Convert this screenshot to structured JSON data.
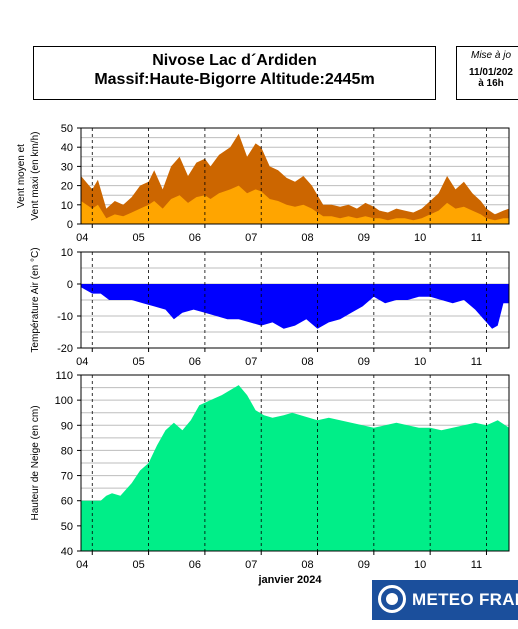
{
  "header": {
    "line1": "Nivose Lac d´Ardiden",
    "line2": "Massif:Haute-Bigorre Altitude:2445m"
  },
  "update": {
    "label": "Mise à jo",
    "date": "11/01/202",
    "time": "à 16h"
  },
  "logo": {
    "text": "METEO FRAN"
  },
  "colors": {
    "wind_max": "#cc6600",
    "wind_mean": "#ffa500",
    "temperature": "#0000ff",
    "snow": "#00ee88",
    "grid": "#bdbdbd"
  },
  "chart_data": [
    {
      "type": "area",
      "ylabel_line1": "Vent moyen et",
      "ylabel_line2": "Vent maxi (en km/h)",
      "ylim": [
        0,
        50
      ],
      "yticks": [
        0,
        10,
        20,
        30,
        40,
        50
      ],
      "xticks": [
        "04",
        "05",
        "06",
        "07",
        "08",
        "09",
        "10",
        "11"
      ],
      "grid": true,
      "x_days": [
        3.8,
        4.0,
        4.1,
        4.25,
        4.4,
        4.55,
        4.7,
        4.85,
        5.0,
        5.1,
        5.25,
        5.4,
        5.55,
        5.7,
        5.85,
        6.0,
        6.1,
        6.25,
        6.45,
        6.6,
        6.75,
        6.9,
        7.0,
        7.15,
        7.3,
        7.45,
        7.6,
        7.75,
        7.9,
        8.0,
        8.1,
        8.25,
        8.4,
        8.55,
        8.7,
        8.85,
        9.0,
        9.1,
        9.25,
        9.4,
        9.55,
        9.7,
        9.85,
        10.0,
        10.15,
        10.3,
        10.45,
        10.6,
        10.75,
        10.9,
        11.0,
        11.15,
        11.3,
        11.4
      ],
      "series": [
        {
          "name": "Vent maxi",
          "values": [
            25,
            18,
            23,
            8,
            12,
            10,
            14,
            20,
            22,
            28,
            18,
            30,
            35,
            25,
            32,
            34,
            30,
            36,
            40,
            47,
            35,
            42,
            40,
            30,
            28,
            24,
            22,
            25,
            20,
            15,
            10,
            10,
            9,
            10,
            8,
            11,
            9,
            7,
            6,
            8,
            7,
            6,
            8,
            12,
            16,
            25,
            18,
            22,
            16,
            12,
            8,
            5,
            7,
            8
          ]
        },
        {
          "name": "Vent moyen",
          "values": [
            12,
            8,
            10,
            3,
            5,
            4,
            6,
            8,
            10,
            12,
            8,
            13,
            15,
            11,
            14,
            15,
            13,
            16,
            18,
            20,
            16,
            18,
            17,
            13,
            12,
            10,
            9,
            10,
            8,
            6,
            4,
            4,
            3,
            4,
            3,
            4,
            3,
            3,
            2,
            3,
            3,
            2,
            3,
            5,
            7,
            11,
            8,
            9,
            7,
            5,
            3,
            2,
            3,
            3
          ]
        }
      ]
    },
    {
      "type": "area",
      "ylabel": "Température Air (en °C)",
      "ylim": [
        -20,
        10
      ],
      "yticks": [
        -20,
        -10,
        0,
        10
      ],
      "xticks": [
        "04",
        "05",
        "06",
        "07",
        "08",
        "09",
        "10",
        "11"
      ],
      "grid": true,
      "x_days": [
        3.8,
        4.0,
        4.15,
        4.3,
        4.5,
        4.7,
        4.9,
        5.1,
        5.3,
        5.45,
        5.6,
        5.8,
        6.0,
        6.2,
        6.4,
        6.6,
        6.8,
        7.0,
        7.2,
        7.4,
        7.6,
        7.8,
        8.0,
        8.2,
        8.4,
        8.6,
        8.8,
        9.0,
        9.2,
        9.4,
        9.6,
        9.8,
        10.0,
        10.2,
        10.4,
        10.6,
        10.8,
        10.95,
        11.1,
        11.2,
        11.3,
        11.4
      ],
      "series": [
        {
          "name": "Température Air",
          "values": [
            -1,
            -3,
            -3,
            -5,
            -5,
            -5,
            -6,
            -7,
            -8,
            -11,
            -9,
            -8,
            -9,
            -10,
            -11,
            -11,
            -12,
            -13,
            -12,
            -14,
            -13,
            -11,
            -14,
            -12,
            -11,
            -9,
            -7,
            -4,
            -6,
            -5,
            -5,
            -4,
            -4,
            -5,
            -6,
            -5,
            -8,
            -11,
            -14,
            -13,
            -6,
            -6
          ]
        }
      ]
    },
    {
      "type": "area",
      "ylabel": "Hauteur de Neige (en cm)",
      "xlabel": "janvier 2024",
      "ylim": [
        40,
        110
      ],
      "yticks": [
        40,
        50,
        60,
        70,
        80,
        90,
        100,
        110
      ],
      "xticks": [
        "04",
        "05",
        "06",
        "07",
        "08",
        "09",
        "10",
        "11"
      ],
      "grid": true,
      "x_days": [
        3.8,
        4.0,
        4.15,
        4.25,
        4.35,
        4.5,
        4.7,
        4.85,
        5.0,
        5.15,
        5.3,
        5.45,
        5.6,
        5.75,
        5.9,
        6.1,
        6.3,
        6.45,
        6.6,
        6.75,
        6.9,
        7.05,
        7.2,
        7.4,
        7.55,
        7.7,
        7.85,
        8.0,
        8.2,
        8.4,
        8.6,
        8.8,
        9.0,
        9.2,
        9.4,
        9.6,
        9.8,
        10.0,
        10.2,
        10.4,
        10.6,
        10.8,
        11.0,
        11.2,
        11.4
      ],
      "series": [
        {
          "name": "Hauteur de Neige",
          "values": [
            60,
            60,
            60,
            62,
            63,
            62,
            67,
            72,
            75,
            82,
            88,
            91,
            88,
            92,
            98,
            100,
            102,
            104,
            106,
            102,
            96,
            94,
            93,
            94,
            95,
            94,
            93,
            92,
            93,
            92,
            91,
            90,
            89,
            90,
            91,
            90,
            89,
            89,
            88,
            89,
            90,
            91,
            90,
            92,
            89
          ]
        }
      ]
    }
  ]
}
